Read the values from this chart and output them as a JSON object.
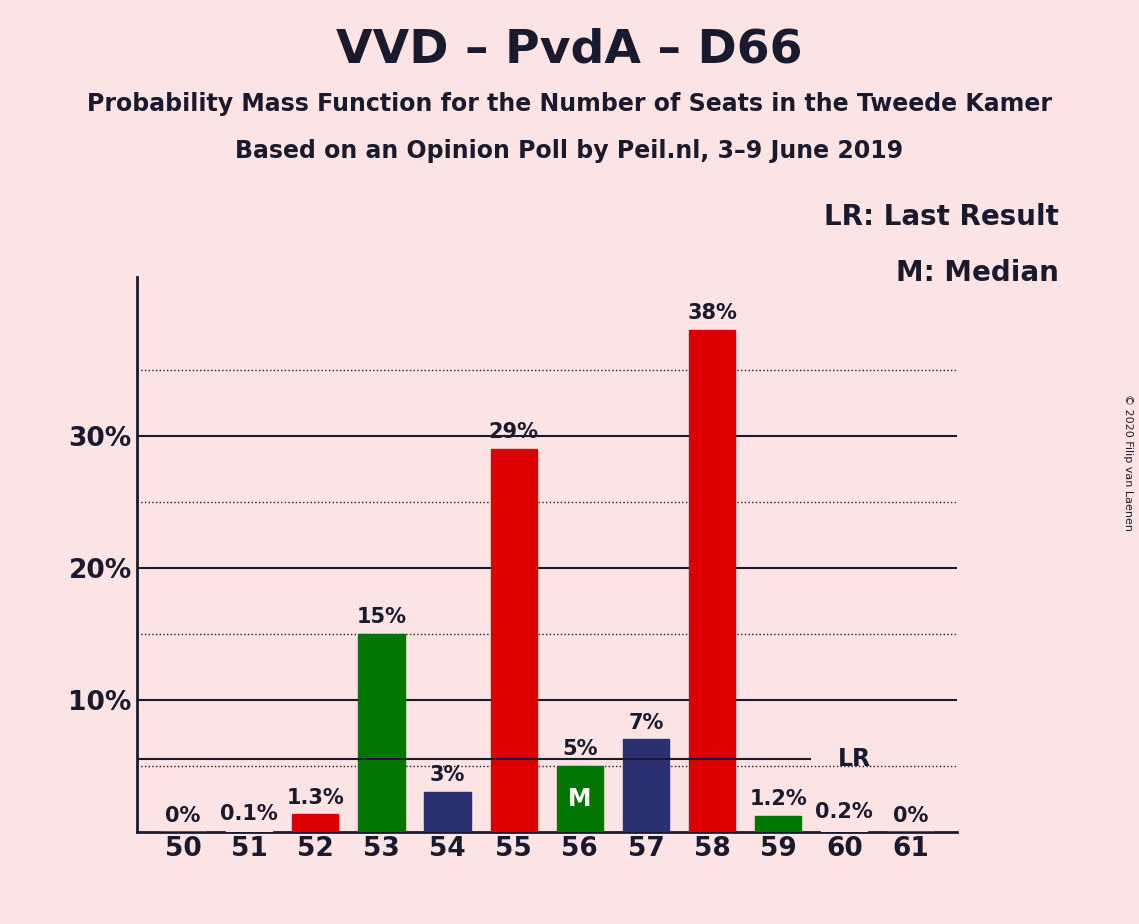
{
  "title": "VVD – PvdA – D66",
  "subtitle1": "Probability Mass Function for the Number of Seats in the Tweede Kamer",
  "subtitle2": "Based on an Opinion Poll by Peil.nl, 3–9 June 2019",
  "copyright": "© 2020 Filip van Laenen",
  "seats": [
    50,
    51,
    52,
    53,
    54,
    55,
    56,
    57,
    58,
    59,
    60,
    61
  ],
  "values": [
    0.0,
    0.1,
    1.3,
    15.0,
    3.0,
    29.0,
    5.0,
    7.0,
    38.0,
    1.2,
    0.2,
    0.0
  ],
  "bar_colors": [
    "#fce4e4",
    "#fce4e4",
    "#dd0000",
    "#007700",
    "#2b3070",
    "#dd0000",
    "#007700",
    "#2b3070",
    "#dd0000",
    "#007700",
    "#fce4e4",
    "#fce4e4"
  ],
  "labels": [
    "0%",
    "0.1%",
    "1.3%",
    "15%",
    "3%",
    "29%",
    "5%",
    "7%",
    "38%",
    "1.2%",
    "0.2%",
    "0%"
  ],
  "median_seat": 56,
  "last_result_value": 5.5,
  "last_result_label": "LR",
  "legend_lr": "LR: Last Result",
  "legend_m": "M: Median",
  "background_color": "#fce4e4",
  "ylim_max": 42,
  "bar_width": 0.7,
  "title_fontsize": 34,
  "subtitle_fontsize": 17,
  "axis_fontsize": 19,
  "label_fontsize": 15,
  "legend_fontsize": 20,
  "solid_lines": [
    10,
    20,
    30
  ],
  "dotted_lines": [
    5,
    15,
    25,
    35
  ],
  "ytick_positions": [
    10,
    20,
    30
  ],
  "ytick_labels": [
    "10%",
    "20%",
    "30%"
  ],
  "text_color": "#1a1a2e"
}
